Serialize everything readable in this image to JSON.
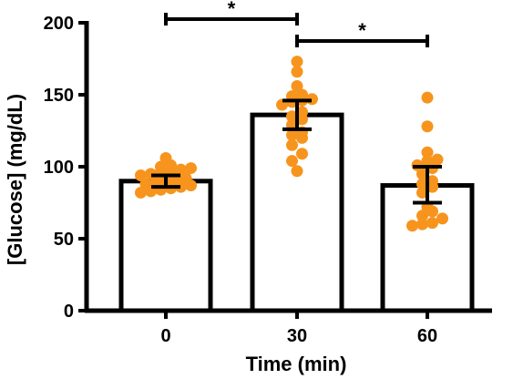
{
  "chart_data": {
    "type": "bar",
    "xlabel": "Time (min)",
    "ylabel": "[Glucose] (mg/dL)",
    "ylim": [
      0,
      200
    ],
    "yticks": [
      0,
      50,
      100,
      150,
      200
    ],
    "categories": [
      "0",
      "30",
      "60"
    ],
    "values": [
      90,
      136,
      87
    ],
    "error": [
      {
        "low": 86,
        "high": 94
      },
      {
        "low": 126,
        "high": 146
      },
      {
        "low": 75,
        "high": 100
      }
    ],
    "points": [
      [
        100,
        99,
        98,
        97,
        95,
        94,
        92,
        91,
        90,
        89,
        88,
        87,
        86,
        85,
        84,
        83,
        82,
        101,
        106,
        96
      ],
      [
        173,
        166,
        156,
        150,
        149,
        147,
        146,
        145,
        143,
        138,
        135,
        133,
        129,
        124,
        122,
        120,
        115,
        109,
        104,
        97
      ],
      [
        148,
        128,
        110,
        105,
        104,
        101,
        99,
        95,
        90,
        88,
        86,
        82,
        72,
        69,
        66,
        64,
        61,
        60,
        59
      ]
    ],
    "significance": [
      {
        "from": "0",
        "to": "30",
        "label": "*"
      },
      {
        "from": "30",
        "to": "60",
        "label": "*"
      }
    ],
    "bar_fill": "#ffffff",
    "bar_stroke": "#000000",
    "point_color": "#f7941d",
    "grid": false
  }
}
